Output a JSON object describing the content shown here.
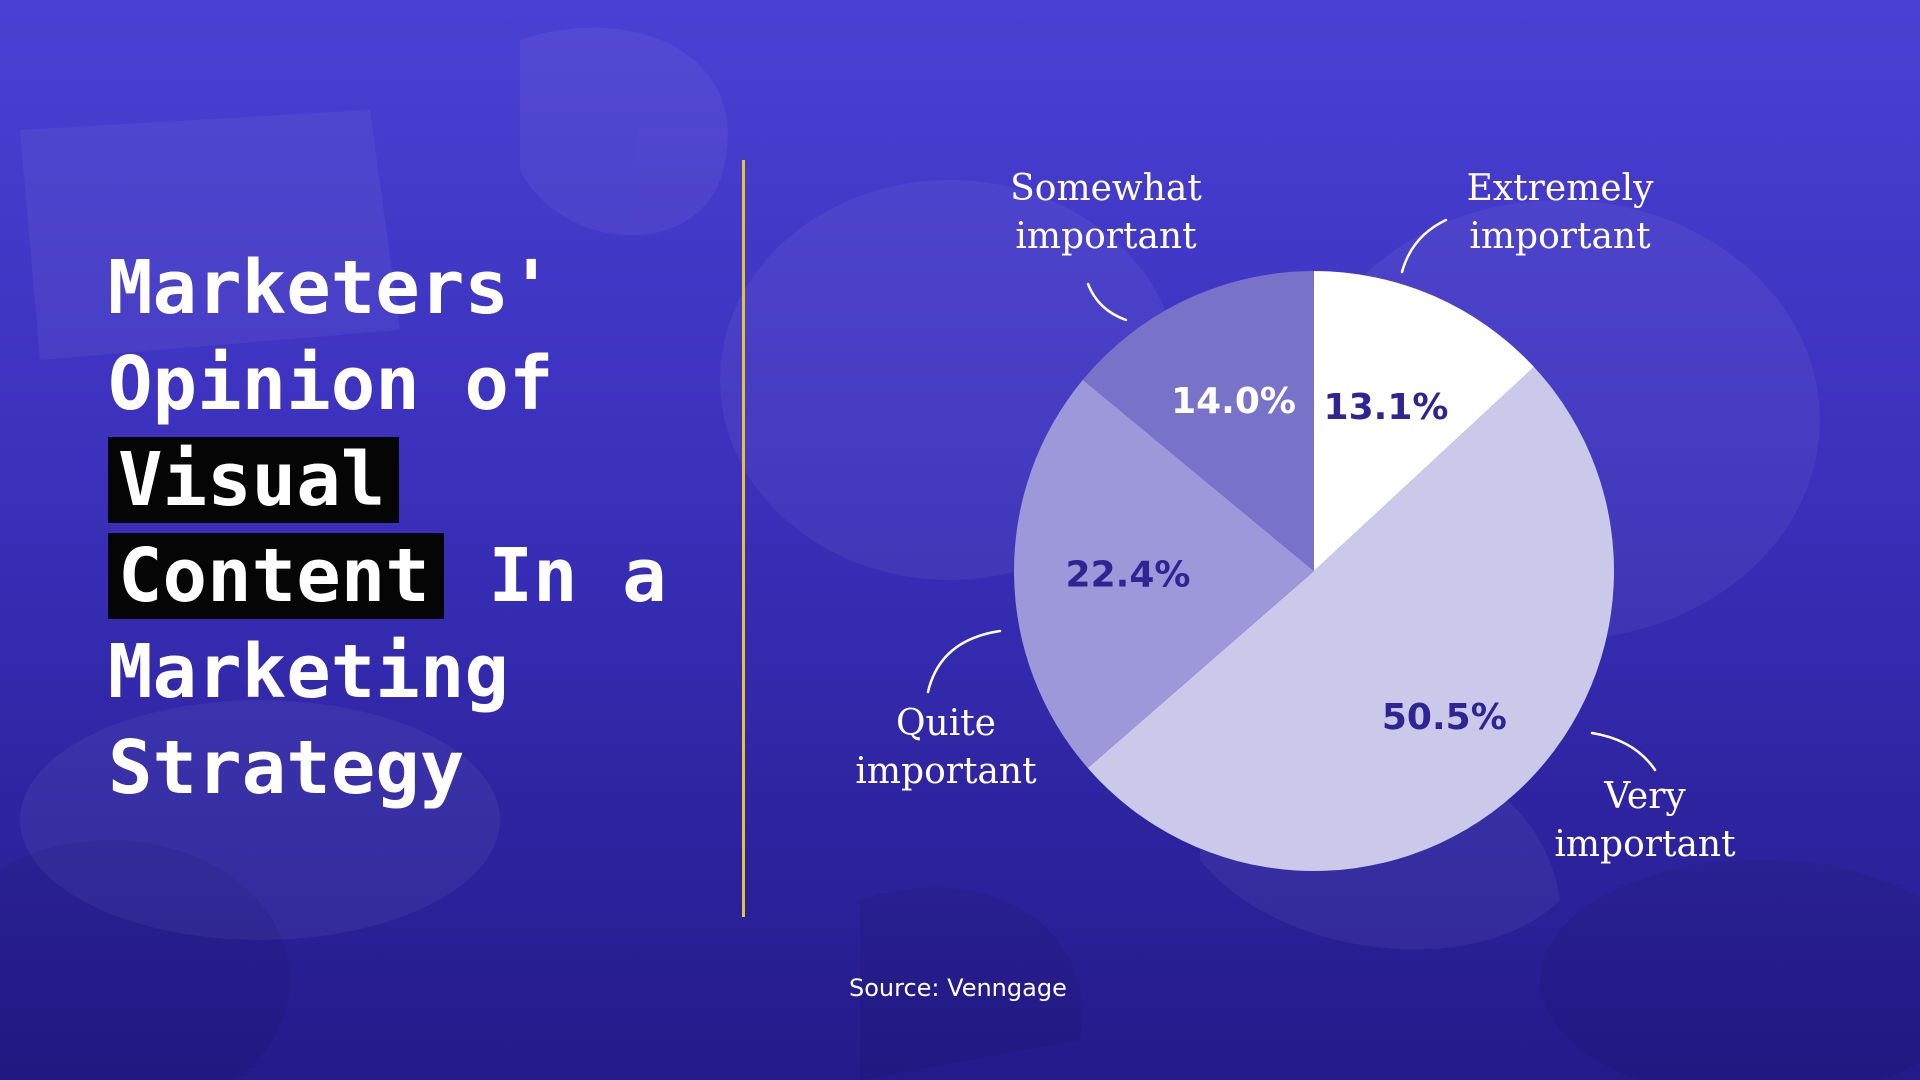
{
  "title": {
    "line1": "Marketers'",
    "line2": "Opinion of",
    "line3": "Visual",
    "line4_highlight": "Content",
    "line4_rest": "In a",
    "line5": "Marketing",
    "line6": "Strategy"
  },
  "source": "Source: Venngage",
  "colors": {
    "accent_divider": "#e3c33a",
    "highlight_bg": "#050505",
    "label_dark": "#2e2492"
  },
  "chart_data": {
    "type": "pie",
    "categories": [
      "Extremely important",
      "Very important",
      "Quite important",
      "Somewhat important"
    ],
    "values": [
      13.1,
      50.5,
      22.4,
      14.0
    ],
    "data_labels": [
      "13.1%",
      "50.5%",
      "22.4%",
      "14.0%"
    ],
    "category_lines": [
      [
        "Extremely",
        "important"
      ],
      [
        "Very",
        "important"
      ],
      [
        "Quite",
        "important"
      ],
      [
        "Somewhat",
        "important"
      ]
    ],
    "slice_colors": [
      "#ffffff",
      "#cbc9ea",
      "#9d98d9",
      "#7872c9"
    ],
    "label_colors": [
      "#2e2492",
      "#2e2492",
      "#2e2492",
      "#ffffff"
    ],
    "title": "",
    "legend": "none"
  }
}
